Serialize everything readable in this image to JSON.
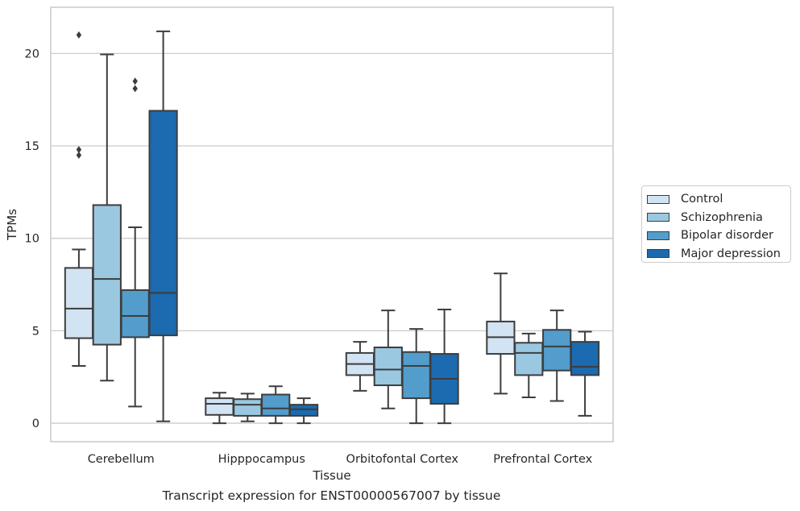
{
  "chart_data": {
    "type": "boxplot",
    "xlabel": "Tissue",
    "ylabel": "TPMs",
    "ylim": [
      -1,
      22.5
    ],
    "yticks": [
      0,
      5,
      10,
      15,
      20
    ],
    "grid": "horizontal",
    "legend_position": "right",
    "caption": "Transcript expression for ENST00000567007 by tissue",
    "categories": [
      "Cerebellum",
      "Hipppocampus",
      "Orbitofontal Cortex",
      "Prefrontal Cortex"
    ],
    "series": [
      {
        "name": "Control",
        "color": "#d2e3f3",
        "boxes": [
          {
            "whislo": 3.1,
            "q1": 4.6,
            "med": 6.2,
            "q3": 8.4,
            "whishi": 9.4,
            "fliers": [
              14.5,
              14.8,
              21.0
            ]
          },
          {
            "whislo": 0.0,
            "q1": 0.45,
            "med": 1.05,
            "q3": 1.35,
            "whishi": 1.65,
            "fliers": []
          },
          {
            "whislo": 1.75,
            "q1": 2.6,
            "med": 3.2,
            "q3": 3.8,
            "whishi": 4.4,
            "fliers": []
          },
          {
            "whislo": 1.6,
            "q1": 3.75,
            "med": 4.65,
            "q3": 5.5,
            "whishi": 8.1,
            "fliers": []
          }
        ]
      },
      {
        "name": "Schizophrenia",
        "color": "#9ac8e0",
        "boxes": [
          {
            "whislo": 2.3,
            "q1": 4.25,
            "med": 7.8,
            "q3": 11.8,
            "whishi": 19.95,
            "fliers": []
          },
          {
            "whislo": 0.1,
            "q1": 0.4,
            "med": 1.0,
            "q3": 1.3,
            "whishi": 1.6,
            "fliers": []
          },
          {
            "whislo": 0.8,
            "q1": 2.05,
            "med": 2.9,
            "q3": 4.1,
            "whishi": 6.1,
            "fliers": []
          },
          {
            "whislo": 1.4,
            "q1": 2.6,
            "med": 3.8,
            "q3": 4.35,
            "whishi": 4.85,
            "fliers": []
          }
        ]
      },
      {
        "name": "Bipolar disorder",
        "color": "#529dcc",
        "boxes": [
          {
            "whislo": 0.9,
            "q1": 4.65,
            "med": 5.8,
            "q3": 7.2,
            "whishi": 10.6,
            "fliers": [
              18.1,
              18.5
            ]
          },
          {
            "whislo": 0.0,
            "q1": 0.4,
            "med": 0.8,
            "q3": 1.55,
            "whishi": 2.0,
            "fliers": []
          },
          {
            "whislo": 0.0,
            "q1": 1.35,
            "med": 3.1,
            "q3": 3.85,
            "whishi": 5.1,
            "fliers": []
          },
          {
            "whislo": 1.2,
            "q1": 2.85,
            "med": 4.15,
            "q3": 5.05,
            "whishi": 6.1,
            "fliers": []
          }
        ]
      },
      {
        "name": "Major depression",
        "color": "#1c6aaf",
        "boxes": [
          {
            "whislo": 0.1,
            "q1": 4.75,
            "med": 7.05,
            "q3": 16.9,
            "whishi": 21.2,
            "fliers": []
          },
          {
            "whislo": 0.0,
            "q1": 0.4,
            "med": 0.75,
            "q3": 1.0,
            "whishi": 1.35,
            "fliers": []
          },
          {
            "whislo": 0.0,
            "q1": 1.05,
            "med": 2.4,
            "q3": 3.75,
            "whishi": 6.15,
            "fliers": []
          },
          {
            "whislo": 0.4,
            "q1": 2.6,
            "med": 3.05,
            "q3": 4.4,
            "whishi": 4.95,
            "fliers": []
          }
        ]
      }
    ]
  }
}
